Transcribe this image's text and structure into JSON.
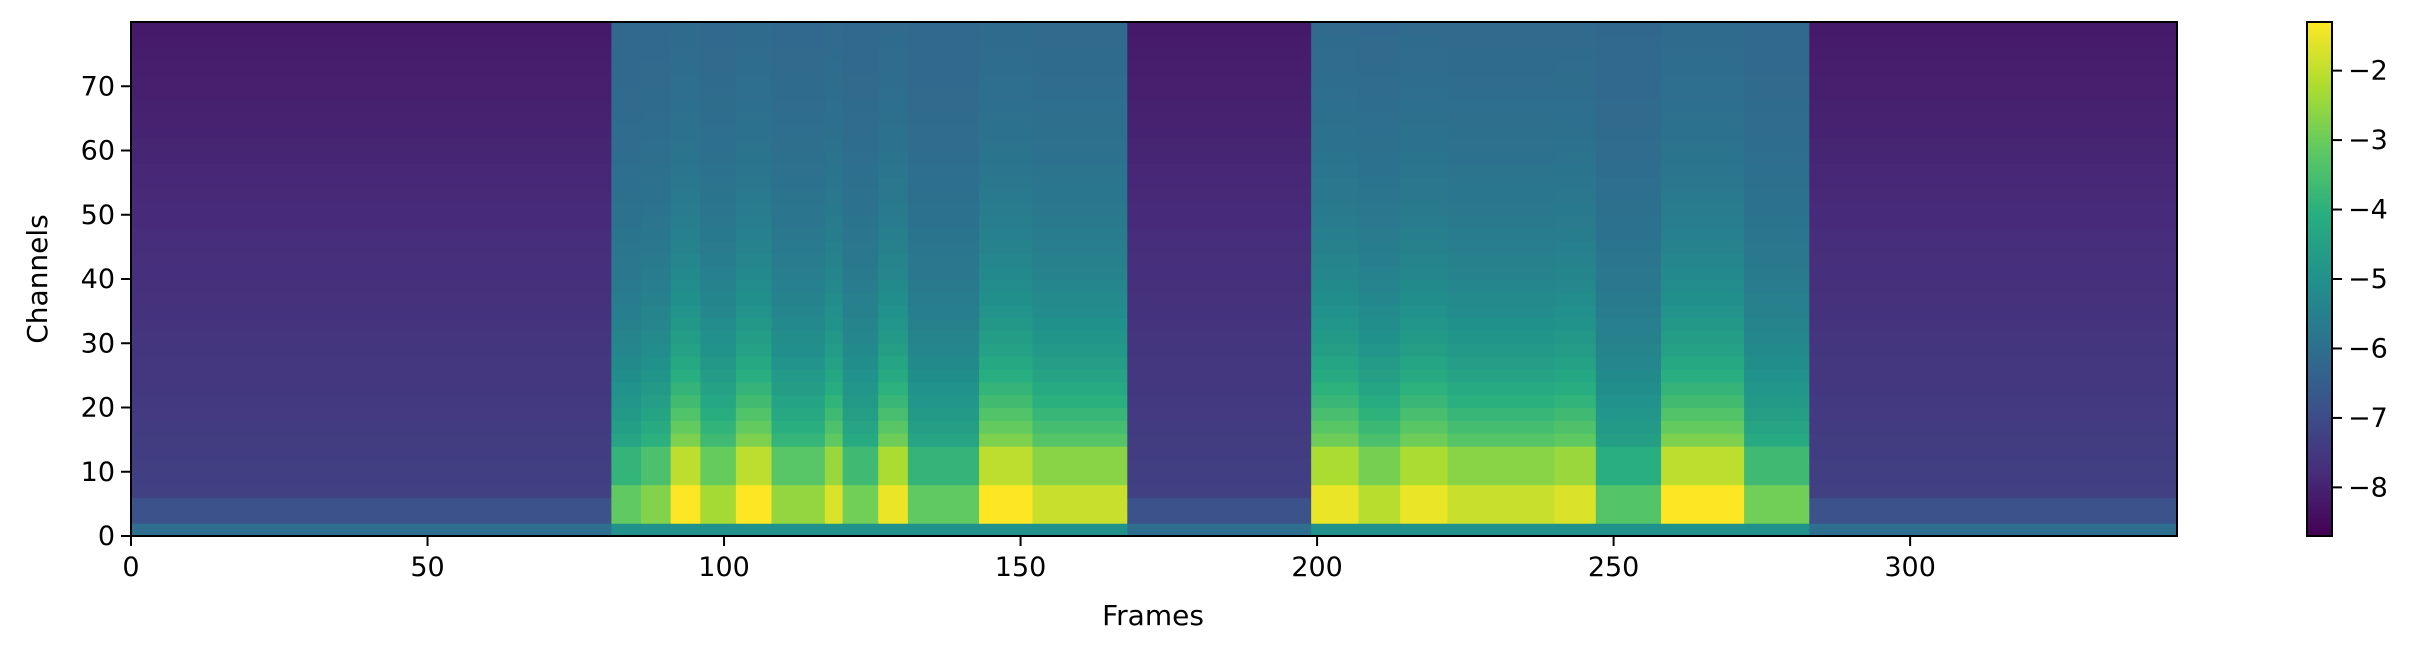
{
  "chart_data": {
    "type": "heatmap",
    "title": "",
    "xlabel": "Frames",
    "ylabel": "Channels",
    "xlim": [
      0,
      345
    ],
    "ylim": [
      0,
      80
    ],
    "x_ticks": [
      0,
      50,
      100,
      150,
      200,
      250,
      300
    ],
    "y_ticks": [
      0,
      10,
      20,
      30,
      40,
      50,
      60,
      70
    ],
    "grid": false,
    "colormap": "viridis",
    "colorbar": {
      "vmin": -8.7,
      "vmax": -1.3,
      "ticks": [
        -8,
        -7,
        -6,
        -5,
        -4,
        -3,
        -2
      ],
      "tick_labels": [
        "−8",
        "−7",
        "−6",
        "−5",
        "−4",
        "−3",
        "−2"
      ]
    },
    "segments": [
      {
        "x": [
          0,
          81
        ],
        "level": 0.0
      },
      {
        "x": [
          81,
          86
        ],
        "level": 0.55
      },
      {
        "x": [
          86,
          91
        ],
        "level": 0.65
      },
      {
        "x": [
          91,
          96
        ],
        "level": 1.0
      },
      {
        "x": [
          96,
          102
        ],
        "level": 0.75
      },
      {
        "x": [
          102,
          108
        ],
        "level": 1.0
      },
      {
        "x": [
          108,
          117
        ],
        "level": 0.7
      },
      {
        "x": [
          117,
          120
        ],
        "level": 0.9
      },
      {
        "x": [
          120,
          126
        ],
        "level": 0.6
      },
      {
        "x": [
          126,
          131
        ],
        "level": 0.95
      },
      {
        "x": [
          131,
          143
        ],
        "level": 0.55
      },
      {
        "x": [
          143,
          152
        ],
        "level": 1.0
      },
      {
        "x": [
          152,
          168
        ],
        "level": 0.85
      },
      {
        "x": [
          168,
          199
        ],
        "level": 0.0
      },
      {
        "x": [
          199,
          207
        ],
        "level": 0.95
      },
      {
        "x": [
          207,
          214
        ],
        "level": 0.8
      },
      {
        "x": [
          214,
          222
        ],
        "level": 0.95
      },
      {
        "x": [
          222,
          240
        ],
        "level": 0.85
      },
      {
        "x": [
          240,
          247
        ],
        "level": 0.9
      },
      {
        "x": [
          247,
          258
        ],
        "level": 0.5
      },
      {
        "x": [
          258,
          272
        ],
        "level": 1.0
      },
      {
        "x": [
          272,
          283
        ],
        "level": 0.6
      },
      {
        "x": [
          283,
          345
        ],
        "level": 0.0
      }
    ]
  }
}
